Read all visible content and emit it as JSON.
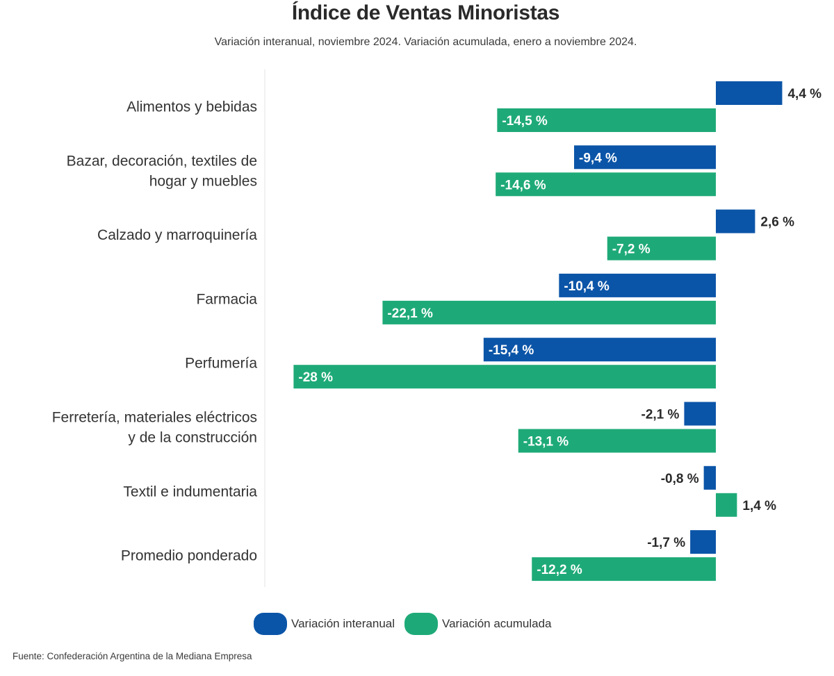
{
  "title": "Índice de Ventas Minoristas",
  "subtitle": "Variación interanual, noviembre 2024. Variación acumulada, enero a noviembre 2024.",
  "source": "Fuente: Confederación Argentina de la Mediana Empresa",
  "colors": {
    "interanual": "#0b55a8",
    "acumulada": "#1eaa78"
  },
  "chart_data": {
    "type": "bar",
    "orientation": "horizontal",
    "title": "Índice de Ventas Minoristas",
    "subtitle": "Variación interanual, noviembre 2024. Variación acumulada, enero a noviembre 2024.",
    "categories": [
      [
        "Alimentos y bebidas"
      ],
      [
        "Bazar, decoración, textiles de",
        "hogar y muebles"
      ],
      [
        "Calzado y marroquinería"
      ],
      [
        "Farmacia"
      ],
      [
        "Perfumería"
      ],
      [
        "Ferretería, materiales eléctricos",
        "y de la construcción"
      ],
      [
        "Textil e indumentaria"
      ],
      [
        "Promedio ponderado"
      ]
    ],
    "series": [
      {
        "name": "Variación interanual",
        "values": [
          4.4,
          -9.4,
          2.6,
          -10.4,
          -15.4,
          -2.1,
          -0.8,
          -1.7
        ],
        "labels": [
          "4,4 %",
          "-9,4 %",
          "2,6 %",
          "-10,4 %",
          "-15,4 %",
          "-2,1 %",
          "-0,8 %",
          "-1,7 %"
        ]
      },
      {
        "name": "Variación acumulada",
        "values": [
          -14.5,
          -14.6,
          -7.2,
          -22.1,
          -28,
          -13.1,
          1.4,
          -12.2
        ],
        "labels": [
          "-14,5 %",
          "-14,6 %",
          "-7,2 %",
          "-22,1 %",
          "-28 %",
          "-13,1 %",
          "1,4 %",
          "-12,2 %"
        ]
      }
    ],
    "xlim": [
      -28,
      4.4
    ],
    "legend": "bottom",
    "grid": false
  }
}
